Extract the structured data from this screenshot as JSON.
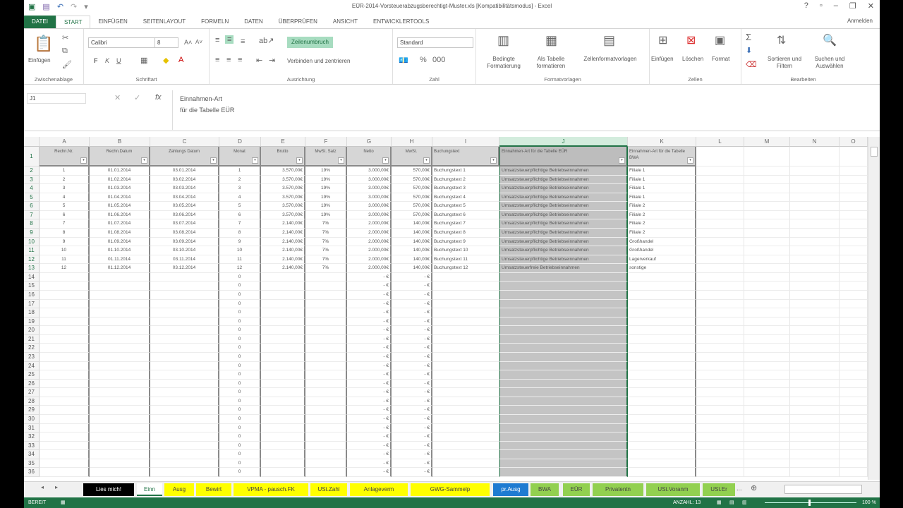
{
  "window": {
    "title": "EÜR-2014-Vorsteuerabzugsberechtigt-Muster.xls [Kompatibilitätsmodus] - Excel",
    "help": "?",
    "minimize": "–",
    "restore": "▫",
    "close": "✕"
  },
  "tabs": [
    "DATEI",
    "START",
    "EINFÜGEN",
    "SEITENLAYOUT",
    "FORMELN",
    "DATEN",
    "ÜBERPRÜFEN",
    "ANSICHT",
    "ENTWICKLERTOOLS"
  ],
  "signin": "Anmelden",
  "ribbon": {
    "clipboard": {
      "paste": "Einfügen",
      "label": "Zwischenablage"
    },
    "font": {
      "name": "Calibri",
      "size": "8",
      "bold": "F",
      "italic": "K",
      "underline": "U",
      "label": "Schriftart"
    },
    "alignment": {
      "wrap": "Zeilenumbruch",
      "merge": "Verbinden und zentrieren",
      "label": "Ausrichtung"
    },
    "number": {
      "format": "Standard",
      "label": "Zahl"
    },
    "styles": {
      "conditional": "Bedingte Formatierung",
      "table": "Als Tabelle formatieren",
      "cellstyles": "Zellenformatvorlagen",
      "label": "Formatvorlagen"
    },
    "cells": {
      "insert": "Einfügen",
      "delete": "Löschen",
      "format": "Format",
      "label": "Zellen"
    },
    "editing": {
      "sort": "Sortieren und Filtern",
      "find": "Suchen und Auswählen",
      "label": "Bearbeiten"
    }
  },
  "formula_bar": {
    "name_box": "J1",
    "line1": "Einnahmen-Art",
    "line2": "für die Tabelle EÜR"
  },
  "columns": [
    "A",
    "B",
    "C",
    "D",
    "E",
    "F",
    "G",
    "H",
    "I",
    "J",
    "K",
    "L",
    "M",
    "N",
    "O"
  ],
  "headers": [
    "Rechn.Nr.",
    "Rechn.Datum",
    "Zahlungs Datum",
    "Monat",
    "Brutto",
    "MwSt. Satz",
    "Netto",
    "MwSt.",
    "Buchungstext",
    "Einnahmen-Art für die Tabelle EÜR",
    "Einnahmen-Art für die Tabelle BWA"
  ],
  "rows": [
    [
      "1",
      "01.01.2014",
      "03.01.2014",
      "1",
      "3.570,00€",
      "19%",
      "3.000,00€",
      "570,00€",
      "Buchungstext 1",
      "Umsatzsteuerpflichtige Betriebseinnahmen",
      "Filiale 1"
    ],
    [
      "2",
      "01.02.2014",
      "03.02.2014",
      "2",
      "3.570,00€",
      "19%",
      "3.000,00€",
      "570,00€",
      "Buchungstext 2",
      "Umsatzsteuerpflichtige Betriebseinnahmen",
      "Filiale 1"
    ],
    [
      "3",
      "01.03.2014",
      "03.03.2014",
      "3",
      "3.570,00€",
      "19%",
      "3.000,00€",
      "570,00€",
      "Buchungstext 3",
      "Umsatzsteuerpflichtige Betriebseinnahmen",
      "Filiale 1"
    ],
    [
      "4",
      "01.04.2014",
      "03.04.2014",
      "4",
      "3.570,00€",
      "19%",
      "3.000,00€",
      "570,00€",
      "Buchungstext 4",
      "Umsatzsteuerpflichtige Betriebseinnahmen",
      "Filiale 1"
    ],
    [
      "5",
      "01.05.2014",
      "03.05.2014",
      "5",
      "3.570,00€",
      "19%",
      "3.000,00€",
      "570,00€",
      "Buchungstext 5",
      "Umsatzsteuerpflichtige Betriebseinnahmen",
      "Filiale 2"
    ],
    [
      "6",
      "01.06.2014",
      "03.06.2014",
      "6",
      "3.570,00€",
      "19%",
      "3.000,00€",
      "570,00€",
      "Buchungstext 6",
      "Umsatzsteuerpflichtige Betriebseinnahmen",
      "Filiale 2"
    ],
    [
      "7",
      "01.07.2014",
      "03.07.2014",
      "7",
      "2.140,00€",
      "7%",
      "2.000,00€",
      "140,00€",
      "Buchungstext 7",
      "Umsatzsteuerpflichtige Betriebseinnahmen",
      "Filiale 2"
    ],
    [
      "8",
      "01.08.2014",
      "03.08.2014",
      "8",
      "2.140,00€",
      "7%",
      "2.000,00€",
      "140,00€",
      "Buchungstext 8",
      "Umsatzsteuerpflichtige Betriebseinnahmen",
      "Filiale 2"
    ],
    [
      "9",
      "01.09.2014",
      "03.09.2014",
      "9",
      "2.140,00€",
      "7%",
      "2.000,00€",
      "140,00€",
      "Buchungstext 9",
      "Umsatzsteuerpflichtige Betriebseinnahmen",
      "Großhandel"
    ],
    [
      "10",
      "01.10.2014",
      "03.10.2014",
      "10",
      "2.140,00€",
      "7%",
      "2.000,00€",
      "140,00€",
      "Buchungstext 10",
      "Umsatzsteuerpflichtige Betriebseinnahmen",
      "Großhandel"
    ],
    [
      "11",
      "01.11.2014",
      "03.11.2014",
      "11",
      "2.140,00€",
      "7%",
      "2.000,00€",
      "140,00€",
      "Buchungstext 11",
      "Umsatzsteuerpflichtige Betriebseinnahmen",
      "Lagerverkauf"
    ],
    [
      "12",
      "01.12.2014",
      "03.12.2014",
      "12",
      "2.140,00€",
      "7%",
      "2.000,00€",
      "140,00€",
      "Buchungstext 12",
      "Umsatzsteuerfreie Betriebseinnahmen",
      "sonstige"
    ]
  ],
  "empty_row": {
    "month": "0",
    "netto": "-   €",
    "mwst": "-   €"
  },
  "row_numbers": [
    "1",
    "2",
    "3",
    "4",
    "5",
    "6",
    "7",
    "8",
    "9",
    "10",
    "11",
    "12",
    "13",
    "14",
    "15",
    "16",
    "17",
    "18",
    "19",
    "20",
    "21",
    "22",
    "23",
    "24",
    "25",
    "26",
    "27",
    "28",
    "29",
    "30",
    "31",
    "32",
    "33",
    "34",
    "35",
    "36"
  ],
  "sheet_tabs": [
    {
      "label": "Lies mich!",
      "bg": "#000000",
      "fg": "#ffffff"
    },
    {
      "label": "Einn",
      "bg": "#ffffff",
      "fg": "#217346"
    },
    {
      "label": "Ausg",
      "bg": "#ffff00",
      "fg": "#444444"
    },
    {
      "label": "Bewirt",
      "bg": "#ffff00",
      "fg": "#444444"
    },
    {
      "label": "VPMA - pausch.FK",
      "bg": "#ffff00",
      "fg": "#444444"
    },
    {
      "label": "USt.Zahl",
      "bg": "#ffff00",
      "fg": "#444444"
    },
    {
      "label": "Anlageverm",
      "bg": "#ffff00",
      "fg": "#444444"
    },
    {
      "label": "GWG-Sammelp",
      "bg": "#ffff00",
      "fg": "#444444"
    },
    {
      "label": "pr.Ausg",
      "bg": "#1e7bd1",
      "fg": "#ffffff"
    },
    {
      "label": "BWA",
      "bg": "#92d050",
      "fg": "#444444"
    },
    {
      "label": "EÜR",
      "bg": "#92d050",
      "fg": "#444444"
    },
    {
      "label": "Privatentn",
      "bg": "#92d050",
      "fg": "#444444"
    },
    {
      "label": "USt.Voranm",
      "bg": "#92d050",
      "fg": "#444444"
    },
    {
      "label": "USt.Er",
      "bg": "#92d050",
      "fg": "#444444"
    }
  ],
  "sheet_more": "...",
  "status": {
    "ready": "BEREIT",
    "count": "ANZAHL: 13",
    "zoom": "100 %"
  },
  "colors": {
    "accent": "#217346",
    "selection": "#c4c4c4"
  }
}
